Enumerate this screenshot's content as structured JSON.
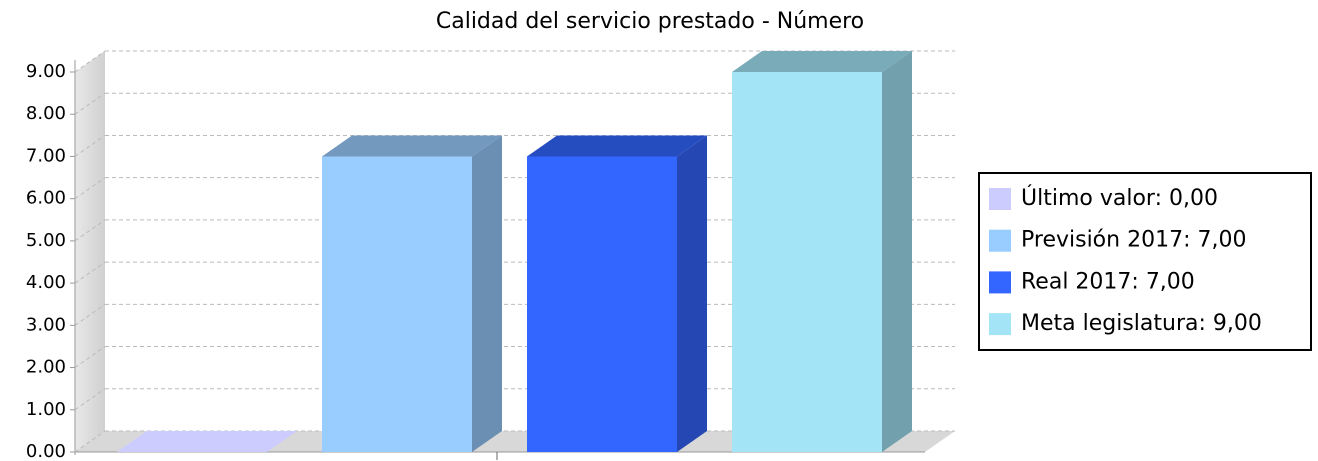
{
  "chart_data": {
    "type": "bar3d",
    "title": "Calidad del servicio prestado - Número",
    "series": [
      {
        "name": "Último valor: 0,00",
        "color": "#ccccff",
        "values": [
          0
        ]
      },
      {
        "name": "Previsión 2017: 7,00",
        "color": "#99ccff",
        "values": [
          7
        ]
      },
      {
        "name": "Real 2017: 7,00",
        "color": "#3366ff",
        "values": [
          7
        ]
      },
      {
        "name": "Meta legislatura: 9,00",
        "color": "#a3e4f7",
        "values": [
          9
        ]
      }
    ],
    "ylim": [
      0,
      9
    ],
    "yticks": [
      {
        "value": 0,
        "label": "0.00"
      },
      {
        "value": 1,
        "label": "1.00"
      },
      {
        "value": 2,
        "label": "2.00"
      },
      {
        "value": 3,
        "label": "3.00"
      },
      {
        "value": 4,
        "label": "4.00"
      },
      {
        "value": 5,
        "label": "5.00"
      },
      {
        "value": 6,
        "label": "6.00"
      },
      {
        "value": 7,
        "label": "7.00"
      },
      {
        "value": 8,
        "label": "8.00"
      },
      {
        "value": 9,
        "label": "9.00"
      }
    ],
    "grid": true,
    "legend": "right"
  }
}
